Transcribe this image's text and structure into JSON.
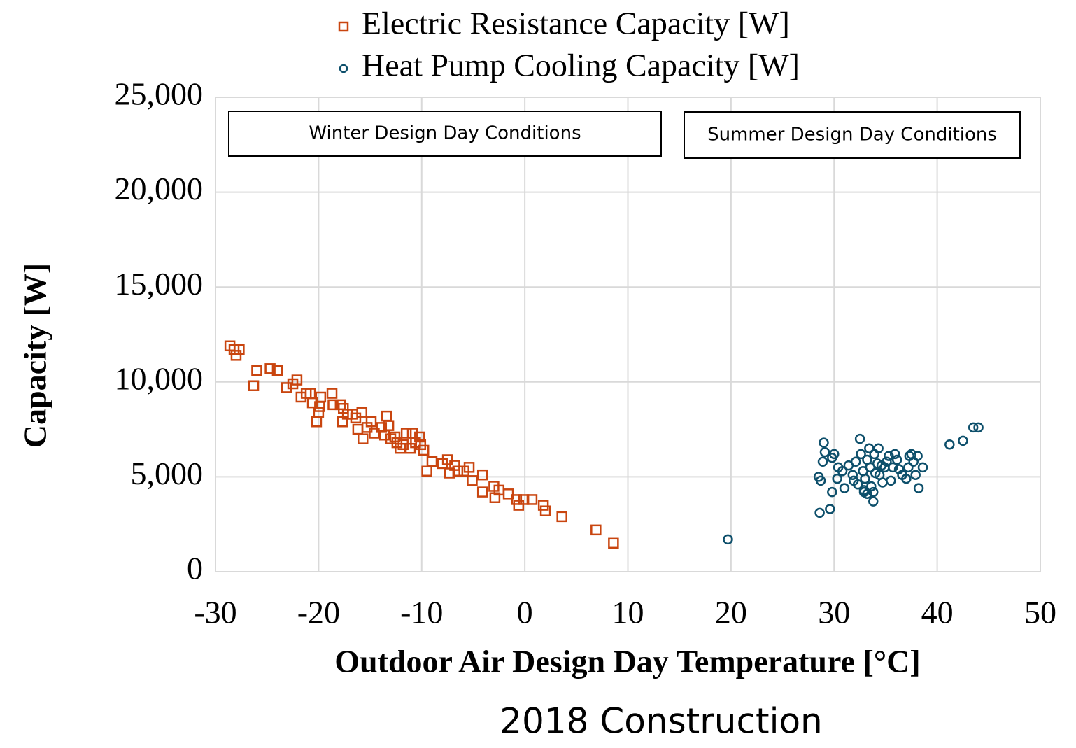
{
  "chart_data": {
    "type": "scatter",
    "title": "2018 Construction",
    "x_label": "Outdoor Air Design Day Temperature [°C]",
    "y_label": "Capacity [W]",
    "annotations": [
      "Winter Design Day Conditions",
      "Summer Design Day Conditions"
    ],
    "xlim": [
      -30,
      50
    ],
    "xticks": [
      -30,
      -20,
      -10,
      0,
      10,
      20,
      30,
      40,
      50
    ],
    "ylim": [
      0,
      25000
    ],
    "yticks": [
      0,
      {
        "value": 5000,
        "label": "5,000"
      },
      {
        "value": 10000,
        "label": "10,000"
      },
      {
        "value": 15000,
        "label": "15,000"
      },
      {
        "value": 20000,
        "label": "20,000"
      },
      {
        "value": 25000,
        "label": "25,000"
      }
    ],
    "grid": true,
    "series": [
      {
        "name": "Electric Resistance Capacity [W]",
        "color": "#c9450f",
        "marker": "square",
        "x": [
          -28.6,
          -28.0,
          -28.2,
          -27.7,
          -26.3,
          -26.0,
          -24.7,
          -24.0,
          -23.1,
          -22.5,
          -22.1,
          -21.7,
          -21.2,
          -20.8,
          -20.6,
          -20.2,
          -20.0,
          -19.9,
          -19.8,
          -18.7,
          -18.6,
          -17.9,
          -17.7,
          -17.6,
          -17.2,
          -16.7,
          -16.4,
          -16.2,
          -15.8,
          -15.7,
          -15.3,
          -14.9,
          -14.6,
          -13.9,
          -13.6,
          -13.4,
          -13.2,
          -13.0,
          -12.6,
          -12.4,
          -12.1,
          -11.8,
          -11.5,
          -11.1,
          -10.9,
          -10.6,
          -10.2,
          -10.1,
          -9.8,
          -9.5,
          -9.0,
          -8.0,
          -7.5,
          -7.3,
          -6.8,
          -6.5,
          -5.9,
          -5.4,
          -5.1,
          -4.1,
          -4.1,
          -3.0,
          -2.9,
          -2.5,
          -1.6,
          -0.8,
          -0.6,
          -0.1,
          0.7,
          1.8,
          2.0,
          3.6,
          6.9,
          8.6
        ],
        "values": [
          11900,
          11400,
          11700,
          11700,
          9800,
          10600,
          10700,
          10600,
          9700,
          9900,
          10100,
          9200,
          9400,
          9400,
          8900,
          7900,
          8400,
          8700,
          9200,
          9400,
          8800,
          8800,
          7900,
          8600,
          8300,
          8300,
          8100,
          7500,
          8400,
          7000,
          7600,
          7900,
          7300,
          7600,
          7200,
          8200,
          7700,
          7000,
          7100,
          6800,
          6500,
          6700,
          7300,
          6500,
          7300,
          6800,
          7100,
          6700,
          6400,
          5300,
          5800,
          5700,
          5900,
          5200,
          5600,
          5300,
          5300,
          5500,
          4800,
          5100,
          4200,
          4500,
          3900,
          4300,
          4100,
          3800,
          3500,
          3800,
          3800,
          3500,
          3200,
          2900,
          2200,
          1500
        ]
      },
      {
        "name": "Heat Pump Cooling Capacity [W]",
        "color": "#0d4f6b",
        "marker": "circle",
        "x": [
          19.7,
          28.5,
          28.7,
          28.6,
          29.0,
          29.1,
          28.9,
          29.6,
          29.8,
          29.8,
          30.0,
          30.3,
          30.4,
          30.8,
          31.0,
          31.4,
          31.8,
          31.9,
          32.1,
          32.3,
          32.5,
          32.6,
          32.8,
          32.9,
          33.0,
          33.2,
          33.4,
          33.5,
          33.6,
          33.8,
          33.9,
          34.0,
          34.2,
          34.3,
          34.4,
          34.6,
          34.7,
          34.9,
          35.1,
          35.3,
          35.5,
          35.7,
          35.9,
          36.1,
          36.3,
          36.6,
          37.0,
          37.2,
          37.3,
          37.5,
          37.7,
          37.9,
          38.1,
          38.2,
          38.6,
          41.2,
          42.5,
          43.5,
          44.0,
          33.2,
          33.8,
          32.9
        ],
        "values": [
          1700,
          5000,
          4800,
          3100,
          6800,
          6300,
          5800,
          3300,
          4200,
          6000,
          6200,
          4900,
          5500,
          5300,
          4400,
          5600,
          5100,
          4800,
          5800,
          4600,
          7000,
          6200,
          5300,
          4200,
          4900,
          5900,
          6500,
          5500,
          4500,
          3700,
          6200,
          5200,
          5700,
          6500,
          5100,
          5600,
          4700,
          5500,
          5800,
          6100,
          4800,
          5500,
          6200,
          5900,
          5400,
          5100,
          4900,
          5500,
          6100,
          6200,
          5800,
          5100,
          6100,
          4400,
          5500,
          6700,
          6900,
          7600,
          7600,
          4100,
          4200,
          4300
        ]
      }
    ]
  }
}
